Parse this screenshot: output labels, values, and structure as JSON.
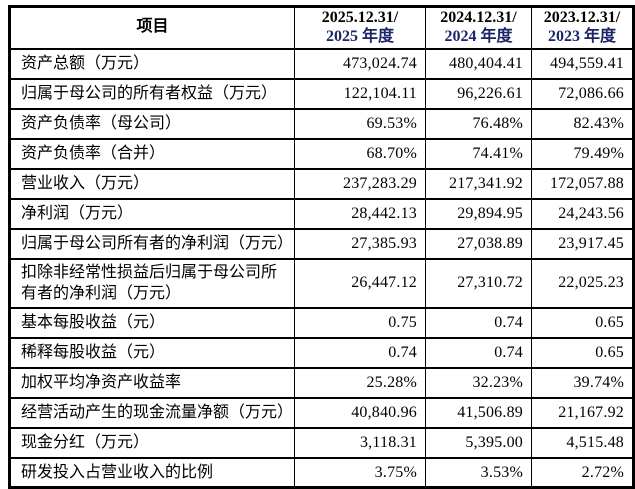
{
  "table": {
    "item_header": "项目",
    "period_headers": [
      {
        "line1": "2025.12.31/",
        "line2": "2025 年度"
      },
      {
        "line1": "2024.12.31/",
        "line2": "2024 年度"
      },
      {
        "line1": "2023.12.31/",
        "line2": "2023 年度"
      }
    ],
    "rows": [
      {
        "label": "资产总额（万元）",
        "values": [
          "473,024.74",
          "480,404.41",
          "494,559.41"
        ]
      },
      {
        "label": "归属于母公司的所有者权益（万元）",
        "values": [
          "122,104.11",
          "96,226.61",
          "72,086.66"
        ]
      },
      {
        "label": "资产负债率（母公司）",
        "values": [
          "69.53%",
          "76.48%",
          "82.43%"
        ]
      },
      {
        "label": "资产负债率（合并）",
        "values": [
          "68.70%",
          "74.41%",
          "79.49%"
        ]
      },
      {
        "label": "营业收入（万元）",
        "values": [
          "237,283.29",
          "217,341.92",
          "172,057.88"
        ]
      },
      {
        "label": "净利润（万元）",
        "values": [
          "28,442.13",
          "29,894.95",
          "24,243.56"
        ]
      },
      {
        "label": "归属于母公司所有者的净利润（万元）",
        "values": [
          "27,385.93",
          "27,038.89",
          "23,917.45"
        ]
      },
      {
        "label": "扣除非经常性损益后归属于母公司所有者的净利润（万元）",
        "values": [
          "26,447.12",
          "27,310.72",
          "22,025.23"
        ]
      },
      {
        "label": "基本每股收益（元）",
        "values": [
          "0.75",
          "0.74",
          "0.65"
        ]
      },
      {
        "label": "稀释每股收益（元）",
        "values": [
          "0.74",
          "0.74",
          "0.65"
        ]
      },
      {
        "label": "加权平均净资产收益率",
        "values": [
          "25.28%",
          "32.23%",
          "39.74%"
        ]
      },
      {
        "label": "经营活动产生的现金流量净额（万元）",
        "values": [
          "40,840.96",
          "41,506.89",
          "21,167.92"
        ]
      },
      {
        "label": "现金分红（万元）",
        "values": [
          "3,118.31",
          "5,395.00",
          "4,515.48"
        ]
      },
      {
        "label": "研发投入占营业收入的比例",
        "values": [
          "3.75%",
          "3.53%",
          "2.72%"
        ]
      }
    ],
    "colors": {
      "border": "#000000",
      "text": "#000000",
      "header_year_accent": "#1b2667",
      "background": "#ffffff"
    }
  }
}
